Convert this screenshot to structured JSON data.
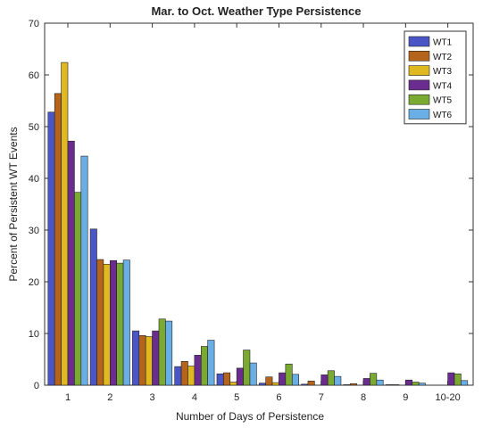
{
  "chart_data": {
    "type": "bar",
    "title": "Mar. to Oct. Weather Type Persistence",
    "xlabel": "Number of Days of Persistence",
    "ylabel": "Percent of Persistent WT Events",
    "categories": [
      "1",
      "2",
      "3",
      "4",
      "5",
      "6",
      "7",
      "8",
      "9",
      "10-20"
    ],
    "ylim": [
      0,
      70
    ],
    "yticks": [
      0,
      10,
      20,
      30,
      40,
      50,
      60,
      70
    ],
    "grid": false,
    "legend_position": "top-right",
    "series": [
      {
        "name": "WT1",
        "color": "#4a56c6",
        "values": [
          52.8,
          30.2,
          10.5,
          3.6,
          2.2,
          0.4,
          0.2,
          0.1,
          0.1,
          0.0
        ]
      },
      {
        "name": "WT2",
        "color": "#b5641c",
        "values": [
          56.4,
          24.3,
          9.6,
          4.6,
          2.4,
          1.6,
          0.8,
          0.3,
          0.1,
          0.0
        ]
      },
      {
        "name": "WT3",
        "color": "#e0b820",
        "values": [
          62.4,
          23.4,
          9.4,
          3.7,
          0.6,
          0.5,
          0.0,
          0.0,
          0.0,
          0.0
        ]
      },
      {
        "name": "WT4",
        "color": "#6a2c8e",
        "values": [
          47.2,
          24.1,
          10.5,
          5.8,
          3.3,
          2.4,
          2.0,
          1.3,
          1.0,
          2.4
        ]
      },
      {
        "name": "WT5",
        "color": "#7aaa32",
        "values": [
          37.3,
          23.6,
          12.8,
          7.5,
          6.8,
          4.1,
          2.8,
          2.3,
          0.6,
          2.2
        ]
      },
      {
        "name": "WT6",
        "color": "#6aaee6",
        "values": [
          44.3,
          24.2,
          12.4,
          8.7,
          4.3,
          2.1,
          1.7,
          1.0,
          0.4,
          0.9
        ]
      }
    ]
  }
}
